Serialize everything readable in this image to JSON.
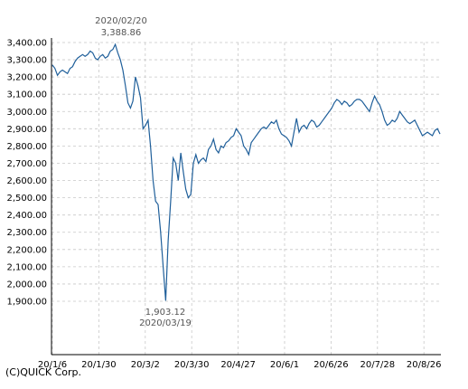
{
  "chart_data": {
    "type": "line",
    "ylim": [
      1800,
      3400
    ],
    "y_ticks": [
      "3,400.00",
      "3,300.00",
      "3,200.00",
      "3,100.00",
      "3,000.00",
      "2,900.00",
      "2,800.00",
      "2,700.00",
      "2,600.00",
      "2,500.00",
      "2,400.00",
      "2,300.00",
      "2,200.00",
      "2,100.00",
      "2,000.00",
      "1,900.00"
    ],
    "y_tick_values": [
      3400,
      3300,
      3200,
      3100,
      3000,
      2900,
      2800,
      2700,
      2600,
      2500,
      2400,
      2300,
      2200,
      2100,
      2000,
      1900
    ],
    "x_ticks": [
      "20/1/6",
      "20/1/30",
      "20/3/2",
      "20/3/30",
      "20/4/27",
      "20/6/1",
      "20/6/26",
      "20/7/28",
      "20/8/26"
    ],
    "grid": true,
    "annotations": {
      "high": {
        "date": "2020/02/20",
        "value": "3,388.86"
      },
      "low": {
        "value": "1,903.12",
        "date": "2020/03/19"
      }
    },
    "line_color": "#1f5f9a",
    "series": [
      {
        "values": [
          3270,
          3250,
          3210,
          3230,
          3240,
          3230,
          3220,
          3250,
          3260,
          3290,
          3310,
          3320,
          3330,
          3320,
          3330,
          3350,
          3340,
          3310,
          3300,
          3320,
          3330,
          3310,
          3320,
          3350,
          3360,
          3388.86,
          3340,
          3300,
          3240,
          3150,
          3050,
          3020,
          3060,
          3200,
          3150,
          3080,
          2900,
          2920,
          2950,
          2800,
          2600,
          2480,
          2460,
          2300,
          2100,
          1903.12,
          2250,
          2480,
          2730,
          2700,
          2600,
          2760,
          2650,
          2550,
          2500,
          2520,
          2700,
          2750,
          2700,
          2720,
          2730,
          2710,
          2780,
          2800,
          2840,
          2780,
          2760,
          2800,
          2790,
          2820,
          2830,
          2850,
          2860,
          2900,
          2880,
          2860,
          2800,
          2780,
          2750,
          2820,
          2840,
          2860,
          2880,
          2900,
          2910,
          2900,
          2920,
          2940,
          2930,
          2950,
          2900,
          2870,
          2860,
          2850,
          2830,
          2800,
          2880,
          2960,
          2880,
          2910,
          2920,
          2900,
          2930,
          2950,
          2940,
          2910,
          2920,
          2940,
          2960,
          2980,
          3000,
          3020,
          3050,
          3070,
          3060,
          3040,
          3060,
          3050,
          3030,
          3040,
          3060,
          3070,
          3070,
          3060,
          3040,
          3020,
          3000,
          3050,
          3090,
          3060,
          3040,
          3000,
          2950,
          2920,
          2930,
          2950,
          2940,
          2960,
          3000,
          2980,
          2960,
          2940,
          2930,
          2940,
          2950,
          2920,
          2890,
          2860,
          2870,
          2880,
          2870,
          2860,
          2890,
          2900,
          2870
        ]
      }
    ]
  },
  "footer": {
    "credit": "(C)QUICK Corp."
  }
}
